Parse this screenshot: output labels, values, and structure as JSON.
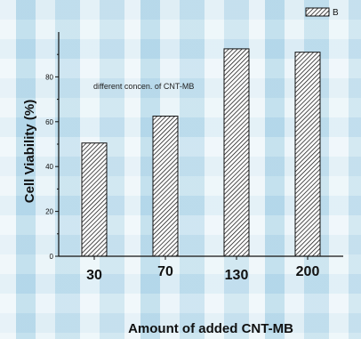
{
  "chart_data": {
    "type": "bar",
    "categories": [
      "30",
      "70",
      "130",
      "200"
    ],
    "series": [
      {
        "name": "B",
        "values": [
          50.5,
          62.5,
          92.5,
          91.0
        ]
      }
    ],
    "xlabel": "Amount of added CNT-MB",
    "ylabel": "Cell Viability (%)",
    "ylim": [
      0,
      100
    ],
    "yticks": [
      0,
      20,
      40,
      60,
      80
    ],
    "annotation": "different concen. of CNT-MB",
    "bar_fill": "hatched",
    "legend_position": "top-right",
    "grid": false,
    "colors": {
      "bar_stroke": "#111111",
      "axis": "#111111"
    }
  }
}
